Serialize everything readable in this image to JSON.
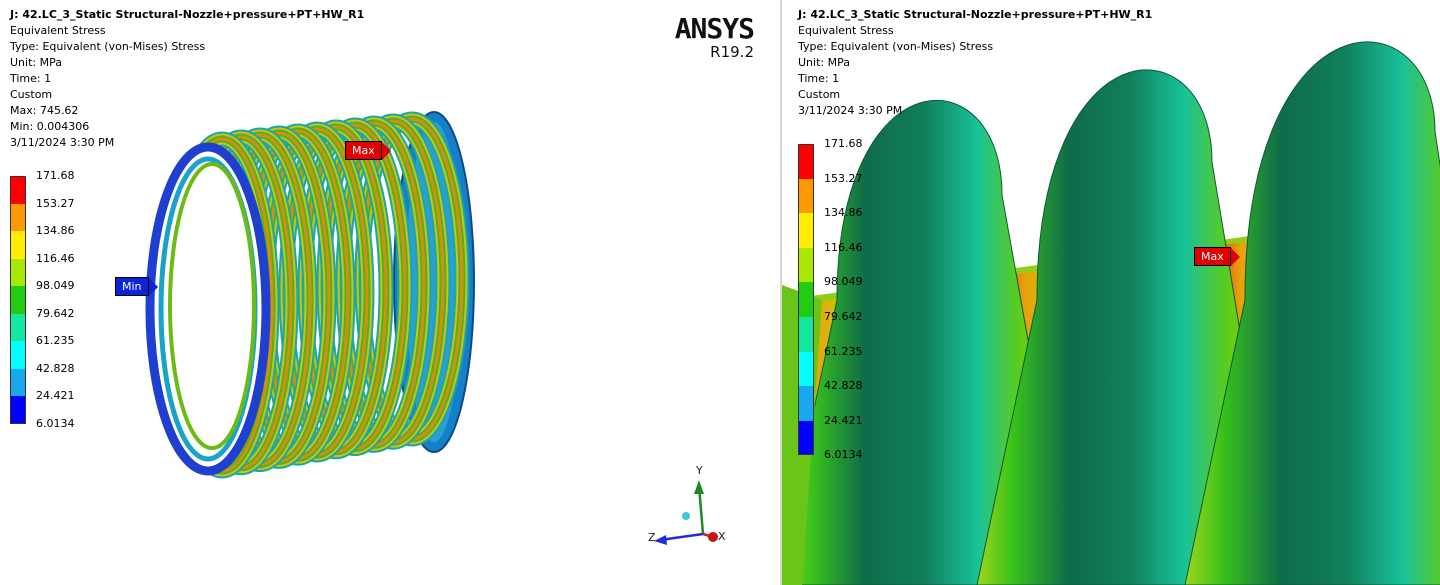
{
  "left": {
    "info": {
      "title": "J: 42.LC_3_Static Structural-Nozzle+pressure+PT+HW_R1",
      "result": "Equivalent Stress",
      "type": "Type: Equivalent (von-Mises) Stress",
      "unit": "Unit: MPa",
      "time": "Time: 1",
      "scale": "Custom",
      "max": "Max: 745.62",
      "min": "Min: 0.004306",
      "date": "3/11/2024 3:30 PM"
    },
    "legend": [
      "171.68",
      "153.27",
      "134.86",
      "116.46",
      "98.049",
      "79.642",
      "61.235",
      "42.828",
      "24.421",
      "6.0134"
    ],
    "probes": {
      "max": "Max",
      "min": "Min"
    },
    "brand": {
      "name": "ANSYS",
      "version": "R19.2"
    },
    "triad": {
      "y": "Y",
      "z": "Z",
      "x": "X"
    }
  },
  "right": {
    "info": {
      "title": "J: 42.LC_3_Static Structural-Nozzle+pressure+PT+HW_R1",
      "result": "Equivalent Stress",
      "type": "Type: Equivalent (von-Mises) Stress",
      "unit": "Unit: MPa",
      "time": "Time: 1",
      "scale": "Custom",
      "date": "3/11/2024 3:30 PM"
    },
    "legend": [
      "171.68",
      "153.27",
      "134.86",
      "116.46",
      "98.049",
      "79.642",
      "61.235",
      "42.828",
      "24.421",
      "6.0134"
    ],
    "probes": {
      "max": "Max"
    }
  },
  "colors": {
    "contour": [
      "#ff0000",
      "#ff9900",
      "#ffee00",
      "#a8e800",
      "#22cc11",
      "#14e8a0",
      "#00ffff",
      "#17a8ee",
      "#0000ff"
    ],
    "background": "#ffffff"
  }
}
